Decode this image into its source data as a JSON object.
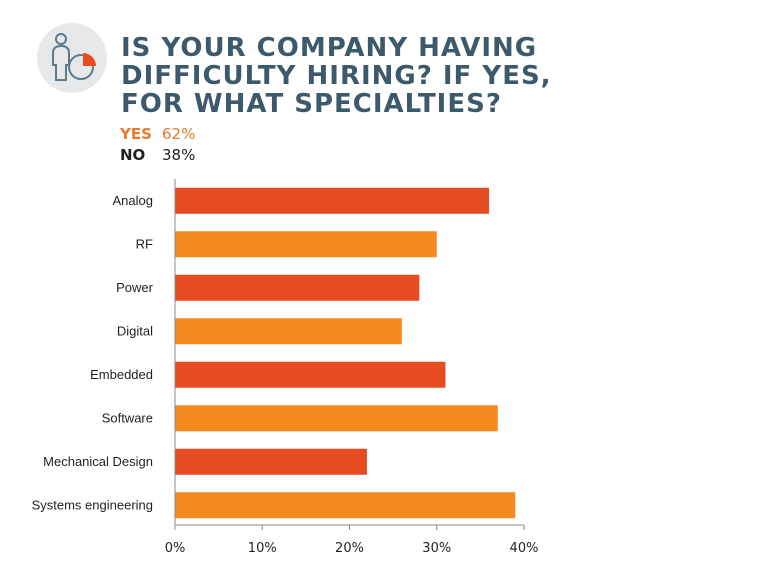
{
  "header": {
    "title_lines": [
      "IS YOUR COMPANY HAVING",
      "DIFFICULTY HIRING? IF YES,",
      "FOR WHAT SPECIALTIES?"
    ],
    "icon": "person-pie-chart-icon"
  },
  "summary": {
    "yes_label": "YES",
    "yes_value": "62%",
    "no_label": "NO",
    "no_value": "38%"
  },
  "colors": {
    "dark_orange": "#e64b22",
    "light_orange": "#f58a1f",
    "title": "#3d5a6c",
    "yes": "#e8792b"
  },
  "chart_data": {
    "type": "bar",
    "orientation": "horizontal",
    "categories": [
      "Analog",
      "RF",
      "Power",
      "Digital",
      "Embedded",
      "Software",
      "Mechanical Design",
      "Systems engineering"
    ],
    "values": [
      36,
      30,
      28,
      26,
      31,
      37,
      22,
      39
    ],
    "xlim": [
      0,
      40
    ],
    "xticks": [
      "0%",
      "10%",
      "20%",
      "30%",
      "40%"
    ],
    "grid": false,
    "bar_colors": [
      "#e64b22",
      "#f58a1f",
      "#e64b22",
      "#f58a1f",
      "#e64b22",
      "#f58a1f",
      "#e64b22",
      "#f58a1f"
    ]
  }
}
